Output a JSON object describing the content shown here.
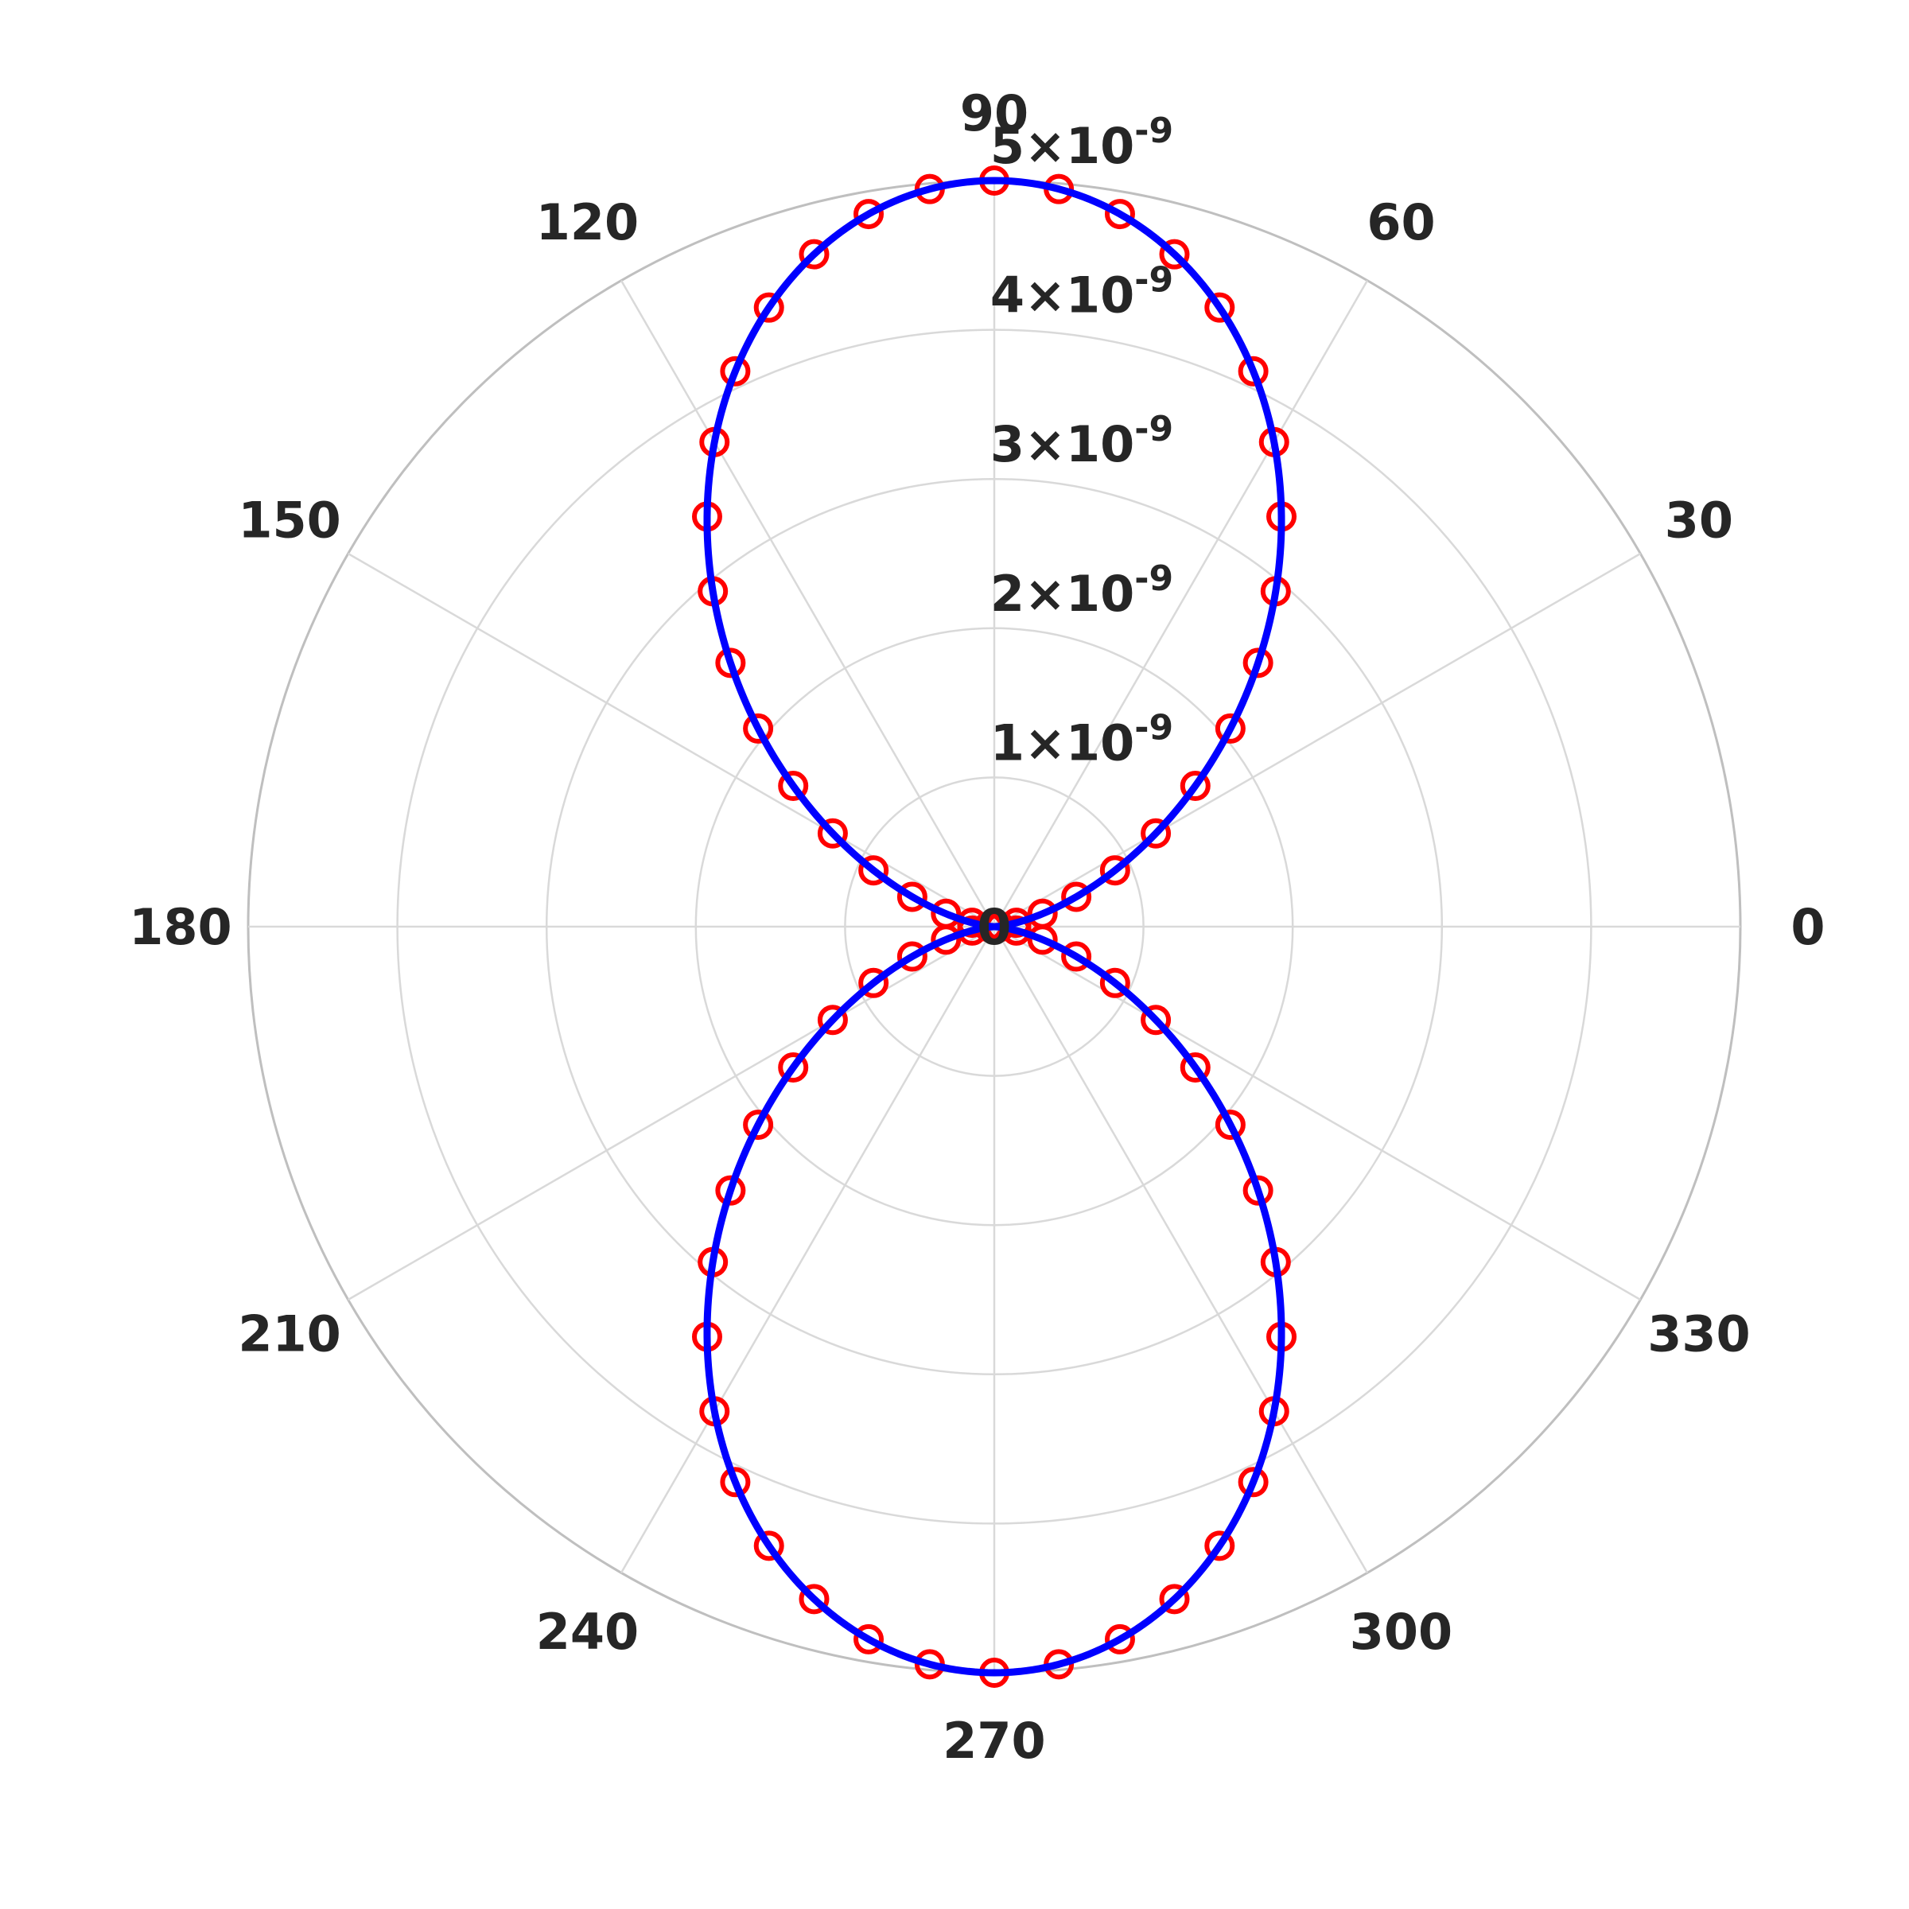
{
  "chart_data": {
    "type": "polar",
    "angle_unit": "degrees",
    "theta_ticks": [
      0,
      30,
      60,
      90,
      120,
      150,
      180,
      210,
      240,
      270,
      300,
      330
    ],
    "theta_tick_labels": [
      "0",
      "30",
      "60",
      "90",
      "120",
      "150",
      "180",
      "210",
      "240",
      "270",
      "300",
      "330"
    ],
    "r_ticks": [
      0,
      1e-09,
      2e-09,
      3e-09,
      4e-09,
      5e-09
    ],
    "r_tick_labels": [
      {
        "mantissa": "0",
        "exponent": ""
      },
      {
        "mantissa": "1×10",
        "exponent": "-9"
      },
      {
        "mantissa": "2×10",
        "exponent": "-9"
      },
      {
        "mantissa": "3×10",
        "exponent": "-9"
      },
      {
        "mantissa": "4×10",
        "exponent": "-9"
      },
      {
        "mantissa": "5×10",
        "exponent": "-9"
      }
    ],
    "rlim": [
      0,
      5e-09
    ],
    "grid": true,
    "series": [
      {
        "style": "line",
        "color": "#0000ff",
        "function": "r = 5e-9 * sin(theta)^2",
        "peak_r": 5e-09,
        "theta_range": [
          0,
          360
        ]
      },
      {
        "style": "markers",
        "marker": "open-circle",
        "color": "#ff0000",
        "function": "r = 5e-9 * sin(theta)^2",
        "peak_r": 5e-09,
        "theta_step": 5,
        "theta_range": [
          0,
          360
        ]
      }
    ]
  },
  "colors": {
    "grid": "#d9d9d9",
    "outer_ring": "#bfbfbf",
    "text": "#262626",
    "line": "#0000ff",
    "markers": "#ff0000"
  }
}
